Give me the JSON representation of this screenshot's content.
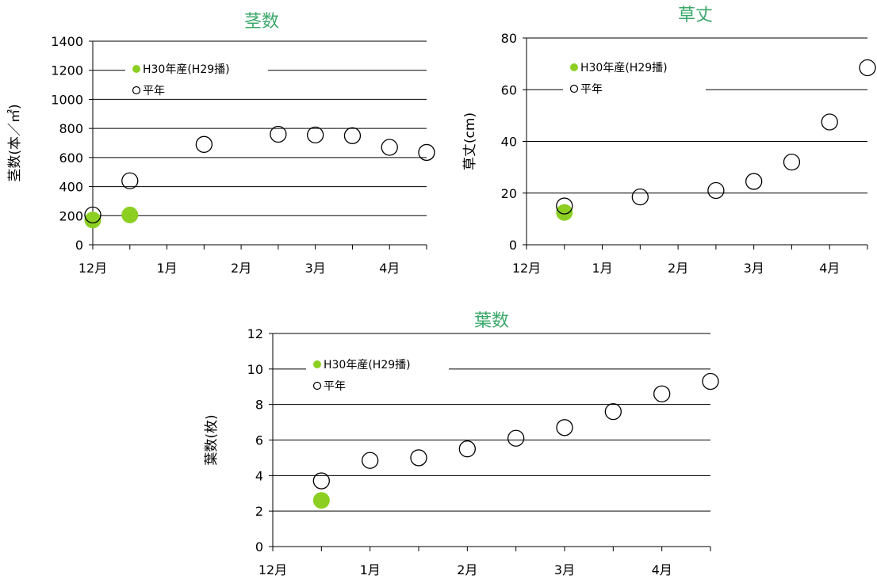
{
  "colors": {
    "title": "#3aa86a",
    "current": "#8ccf22",
    "grid": "#000000",
    "normal_stroke": "#000000"
  },
  "chart_data": [
    {
      "type": "scatter",
      "title": "茎数",
      "xlabel": "",
      "ylabel": "茎数(本／㎡)",
      "xticks": [
        "12月",
        "1月",
        "2月",
        "3月",
        "4月"
      ],
      "xlim": [
        0,
        9
      ],
      "ylim": [
        0,
        1400
      ],
      "yticks": [
        0,
        200,
        400,
        600,
        800,
        1000,
        1200,
        1400
      ],
      "grid": "horizontal",
      "legend_position": "top-left",
      "series": [
        {
          "name": "H30年産(H29播)",
          "style": "filled",
          "x": [
            0,
            1
          ],
          "y": [
            170,
            205
          ]
        },
        {
          "name": "平年",
          "style": "open",
          "x": [
            0,
            1,
            3,
            5,
            6,
            7,
            8,
            9
          ],
          "y": [
            205,
            440,
            690,
            760,
            755,
            750,
            670,
            635
          ]
        }
      ]
    },
    {
      "type": "scatter",
      "title": "草丈",
      "xlabel": "",
      "ylabel": "草丈(cm)",
      "xticks": [
        "12月",
        "1月",
        "2月",
        "3月",
        "4月"
      ],
      "xlim": [
        0,
        9
      ],
      "ylim": [
        0,
        80
      ],
      "yticks": [
        0,
        20,
        40,
        60,
        80
      ],
      "grid": "horizontal",
      "legend_position": "top-left",
      "series": [
        {
          "name": "H30年産(H29播)",
          "style": "filled",
          "x": [
            1
          ],
          "y": [
            12.5
          ]
        },
        {
          "name": "平年",
          "style": "open",
          "x": [
            1,
            3,
            5,
            6,
            7,
            8,
            9
          ],
          "y": [
            15,
            18.5,
            21,
            24.5,
            32,
            47.5,
            68.5
          ]
        }
      ]
    },
    {
      "type": "scatter",
      "title": "葉数",
      "xlabel": "",
      "ylabel": "葉数(枚)",
      "xticks": [
        "12月",
        "1月",
        "2月",
        "3月",
        "4月"
      ],
      "xlim": [
        0,
        9
      ],
      "ylim": [
        0,
        12
      ],
      "yticks": [
        0,
        2,
        4,
        6,
        8,
        10,
        12
      ],
      "grid": "horizontal",
      "legend_position": "top-left",
      "series": [
        {
          "name": "H30年産(H29播)",
          "style": "filled",
          "x": [
            1
          ],
          "y": [
            2.6
          ]
        },
        {
          "name": "平年",
          "style": "open",
          "x": [
            1,
            2,
            3,
            4,
            5,
            6,
            7,
            8,
            9
          ],
          "y": [
            3.7,
            4.85,
            5.0,
            5.5,
            6.1,
            6.7,
            7.6,
            8.6,
            9.3
          ]
        }
      ]
    }
  ]
}
